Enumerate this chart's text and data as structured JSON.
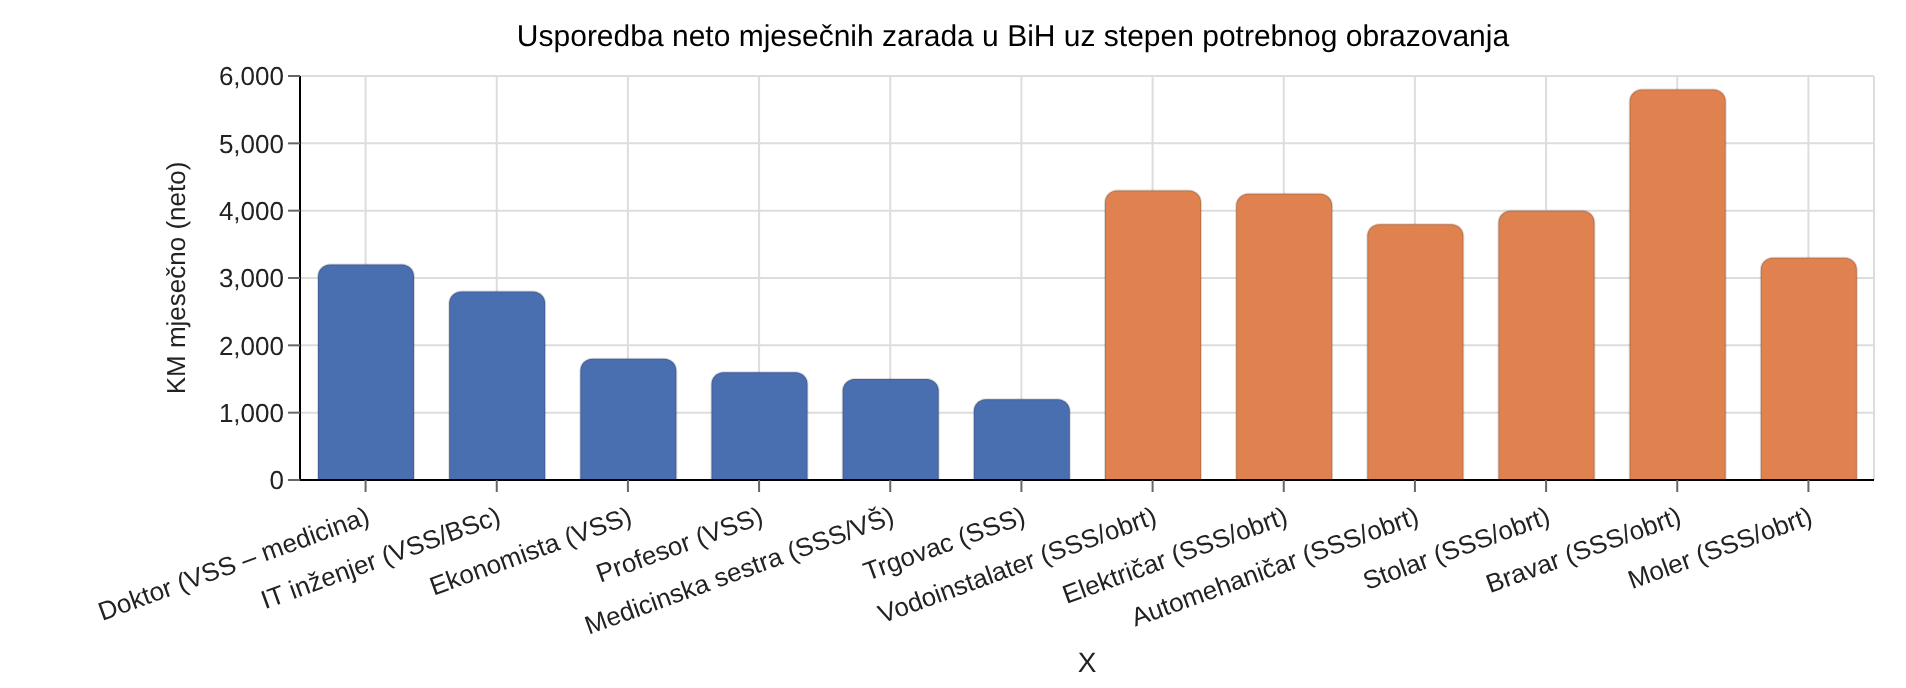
{
  "chart_data": {
    "type": "bar",
    "title": "Usporedba neto mjesečnih zarada u BiH uz stepen potrebnog obrazovanja",
    "xlabel": "X",
    "ylabel": "KM mjesečno (neto)",
    "categories": [
      "Doktor (VSS – medicina)",
      "IT inženjer (VSS/BSc)",
      "Ekonomista (VSS)",
      "Profesor (VSS)",
      "Medicinska sestra (SSS/VŠ)",
      "Trgovac (SSS)",
      "Vodoinstalater (SSS/obrt)",
      "Električar (SSS/obrt)",
      "Automehaničar (SSS/obrt)",
      "Stolar (SSS/obrt)",
      "Bravar (SSS/obrt)",
      "Moler (SSS/obrt)"
    ],
    "values": [
      3200,
      2800,
      1800,
      1600,
      1500,
      1200,
      4300,
      4250,
      3800,
      4000,
      5800,
      3300
    ],
    "colors": [
      "#4a6fb0",
      "#4a6fb0",
      "#4a6fb0",
      "#4a6fb0",
      "#4a6fb0",
      "#4a6fb0",
      "#df8250",
      "#df8250",
      "#df8250",
      "#df8250",
      "#df8250",
      "#df8250"
    ],
    "ylim": [
      0,
      6000
    ],
    "yticks": [
      0,
      {
        "value": 1000,
        "label": "1,000"
      },
      {
        "value": 2000,
        "label": "2,000"
      },
      {
        "value": 3000,
        "label": "3,000"
      },
      {
        "value": 4000,
        "label": "4,000"
      },
      {
        "value": 5000,
        "label": "5,000"
      },
      {
        "value": 6000,
        "label": "6,000"
      }
    ],
    "grid": true,
    "legend": false
  }
}
